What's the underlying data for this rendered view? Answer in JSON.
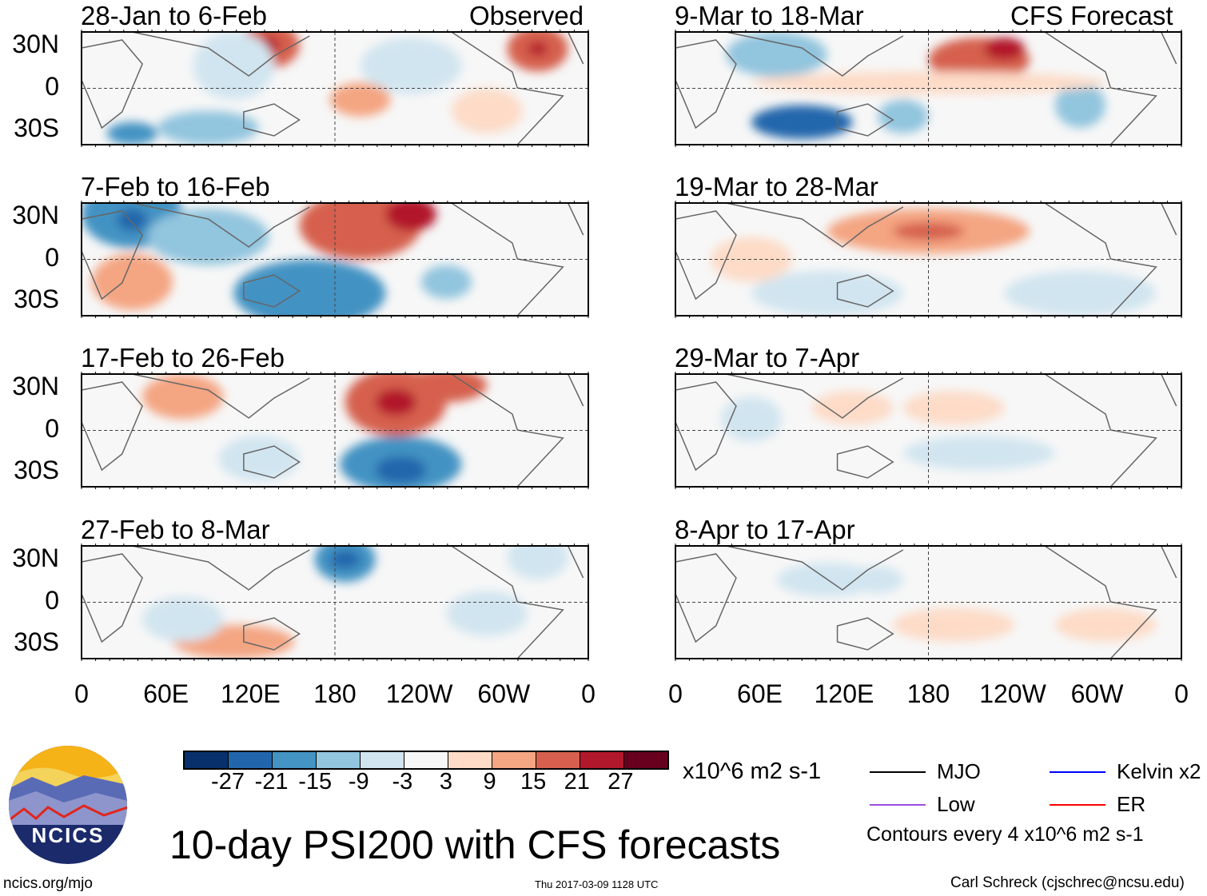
{
  "title": "10-day PSI200 with CFS forecasts",
  "column_labels": {
    "left": "Observed",
    "right": "CFS Forecast"
  },
  "panels_left": [
    "28-Jan to 6-Feb",
    "7-Feb to 16-Feb",
    "17-Feb to 26-Feb",
    "27-Feb to 8-Mar"
  ],
  "panels_right": [
    "9-Mar to 18-Mar",
    "19-Mar to 28-Mar",
    "29-Mar to 7-Apr",
    "8-Apr to 17-Apr"
  ],
  "lat_ticks": [
    "30N",
    "0",
    "30S"
  ],
  "lon_ticks": [
    "0",
    "60E",
    "120E",
    "180",
    "120W",
    "60W",
    "0"
  ],
  "colorbar": {
    "colors": [
      "#08306b",
      "#2166ac",
      "#4393c3",
      "#92c5de",
      "#d1e5f0",
      "#f7f7f7",
      "#fddbc7",
      "#f4a582",
      "#d6604d",
      "#b2182b",
      "#67001f"
    ],
    "labels": [
      "-27",
      "-21",
      "-15",
      "-9",
      "-3",
      "3",
      "9",
      "15",
      "21",
      "27"
    ],
    "units": "x10^6 m2 s-1"
  },
  "legend": [
    {
      "label": "MJO",
      "color": "#000000"
    },
    {
      "label": "Kelvin x2",
      "color": "#0000ff"
    },
    {
      "label": "Low",
      "color": "#9d4ee0"
    },
    {
      "label": "ER",
      "color": "#ff0000"
    }
  ],
  "contour_note": "Contours every 4 x10^6 m2 s-1",
  "logo_text": "NCICS",
  "site": "ncics.org/mjo",
  "timestamp": "Thu 2017-03-09 1128 UTC",
  "author": "Carl Schreck (cjschrec@ncsu.edu)"
}
